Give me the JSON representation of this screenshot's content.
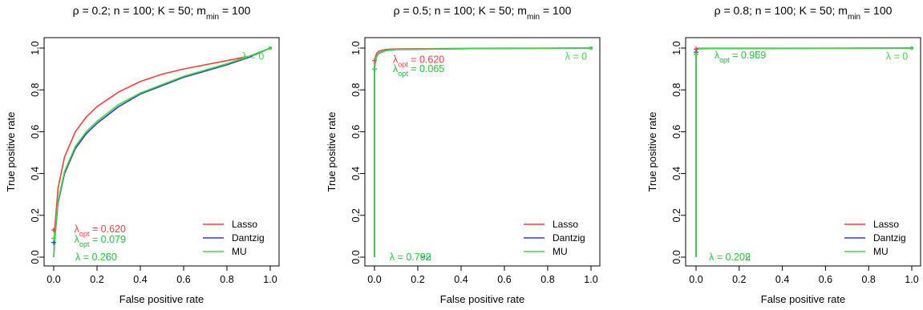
{
  "colors": {
    "lasso": "#ff3b3b",
    "dantzig": "#2b3fd6",
    "mu": "#3ddc3d",
    "axis": "#000000"
  },
  "chart_data": [
    {
      "type": "line",
      "title": {
        "pre": "ρ = 0.2; n = 100; K = 50; m",
        "sub": "min",
        "post": " = 100"
      },
      "xlabel": "False positive rate",
      "ylabel": "True positive rate",
      "xlim": [
        0,
        1
      ],
      "ylim": [
        0,
        1
      ],
      "xticks": [
        "0.0",
        "0.2",
        "0.4",
        "0.6",
        "0.8",
        "1.0"
      ],
      "yticks": [
        "0.0",
        "0.2",
        "0.4",
        "0.6",
        "0.8",
        "1.0"
      ],
      "legend_position": "bottom-right",
      "series": [
        {
          "name": "Lasso",
          "color": "#ff3b3b",
          "x": [
            0,
            0.005,
            0.02,
            0.05,
            0.1,
            0.15,
            0.2,
            0.3,
            0.4,
            0.5,
            0.6,
            0.7,
            0.8,
            0.9,
            1.0
          ],
          "y": [
            0,
            0.14,
            0.33,
            0.48,
            0.6,
            0.67,
            0.72,
            0.79,
            0.84,
            0.875,
            0.9,
            0.92,
            0.94,
            0.96,
            1.0
          ]
        },
        {
          "name": "Dantzig",
          "color": "#2b3fd6",
          "x": [
            0,
            0.005,
            0.02,
            0.05,
            0.1,
            0.15,
            0.2,
            0.3,
            0.4,
            0.5,
            0.6,
            0.7,
            0.8,
            0.9,
            1.0
          ],
          "y": [
            0,
            0.09,
            0.26,
            0.4,
            0.52,
            0.59,
            0.64,
            0.72,
            0.78,
            0.82,
            0.86,
            0.89,
            0.92,
            0.955,
            1.0
          ]
        },
        {
          "name": "MU",
          "color": "#3ddc3d",
          "x": [
            0,
            0.005,
            0.02,
            0.05,
            0.1,
            0.15,
            0.2,
            0.3,
            0.4,
            0.5,
            0.6,
            0.7,
            0.8,
            0.9,
            1.0
          ],
          "y": [
            0,
            0.1,
            0.27,
            0.41,
            0.53,
            0.6,
            0.65,
            0.73,
            0.785,
            0.825,
            0.865,
            0.895,
            0.925,
            0.96,
            1.0
          ]
        }
      ],
      "annotations": [
        {
          "text": "λ = 0.260",
          "x": 0.1,
          "y": 0.0,
          "color": "#2b3fd6"
        },
        {
          "text": "λ = 0.250",
          "x": 0.1,
          "y": 0.0,
          "color": "#3ddc3d"
        },
        {
          "text": "λ = 0",
          "x": 0.87,
          "y": 0.96,
          "color": "#3ddc3d"
        }
      ],
      "lambda_opt": [
        {
          "value": "0.620",
          "x": 0.095,
          "y": 0.135,
          "color": "#ff3b3b",
          "marker_x": 0.0,
          "marker_y": 0.13
        },
        {
          "value": "0.079",
          "x": 0.095,
          "y": 0.085,
          "color": "#2b3fd6",
          "marker_x": 0.0,
          "marker_y": 0.07
        },
        {
          "value": "0.079",
          "x": 0.095,
          "y": 0.085,
          "color": "#3ddc3d",
          "marker_x": 0.0,
          "marker_y": 0.09
        }
      ]
    },
    {
      "type": "line",
      "title": {
        "pre": "ρ = 0.5; n = 100; K = 50; m",
        "sub": "min",
        "post": " = 100"
      },
      "xlabel": "False positive rate",
      "ylabel": "True positive rate",
      "xlim": [
        0,
        1
      ],
      "ylim": [
        0,
        1
      ],
      "xticks": [
        "0.0",
        "0.2",
        "0.4",
        "0.6",
        "0.8",
        "1.0"
      ],
      "yticks": [
        "0.0",
        "0.2",
        "0.4",
        "0.6",
        "0.8",
        "1.0"
      ],
      "legend_position": "bottom-right",
      "series": [
        {
          "name": "Lasso",
          "color": "#ff3b3b",
          "x": [
            0,
            0.0,
            0.005,
            0.01,
            0.02,
            0.05,
            0.1,
            0.5,
            1.0
          ],
          "y": [
            0,
            0.93,
            0.96,
            0.975,
            0.985,
            0.993,
            0.996,
            0.999,
            1.0
          ]
        },
        {
          "name": "Dantzig",
          "color": "#2b3fd6",
          "x": [
            0,
            0.0,
            0.005,
            0.01,
            0.02,
            0.05,
            0.1,
            0.5,
            1.0
          ],
          "y": [
            0,
            0.9,
            0.94,
            0.96,
            0.975,
            0.987,
            0.993,
            0.998,
            1.0
          ]
        },
        {
          "name": "MU",
          "color": "#3ddc3d",
          "x": [
            0,
            0.0,
            0.005,
            0.01,
            0.02,
            0.05,
            0.1,
            0.5,
            1.0
          ],
          "y": [
            0,
            0.9,
            0.945,
            0.962,
            0.977,
            0.988,
            0.994,
            0.998,
            1.0
          ]
        }
      ],
      "annotations": [
        {
          "text": "λ = 0.792",
          "x": 0.07,
          "y": 0.0,
          "color": "#2b3fd6"
        },
        {
          "text": "λ = 0.780",
          "x": 0.07,
          "y": 0.0,
          "color": "#3ddc3d"
        },
        {
          "text": "λ = 0",
          "x": 0.88,
          "y": 0.96,
          "color": "#3ddc3d"
        }
      ],
      "lambda_opt": [
        {
          "value": "0.620",
          "x": 0.085,
          "y": 0.945,
          "color": "#ff3b3b",
          "marker_x": 0.0,
          "marker_y": 0.94
        },
        {
          "value": "0.065",
          "x": 0.085,
          "y": 0.9,
          "color": "#2b3fd6",
          "marker_x": 0.0,
          "marker_y": 0.9
        },
        {
          "value": "0.065",
          "x": 0.085,
          "y": 0.9,
          "color": "#3ddc3d",
          "marker_x": 0.0,
          "marker_y": 0.9
        }
      ]
    },
    {
      "type": "line",
      "title": {
        "pre": "ρ = 0.8; n = 100; K = 50; m",
        "sub": "min",
        "post": " = 100"
      },
      "xlabel": "False positive rate",
      "ylabel": "True positive rate",
      "xlim": [
        0,
        1
      ],
      "ylim": [
        0,
        1
      ],
      "xticks": [
        "0.0",
        "0.2",
        "0.4",
        "0.6",
        "0.8",
        "1.0"
      ],
      "yticks": [
        "0.0",
        "0.2",
        "0.4",
        "0.6",
        "0.8",
        "1.0"
      ],
      "legend_position": "bottom-right",
      "series": [
        {
          "name": "Lasso",
          "color": "#ff3b3b",
          "x": [
            0,
            0.0,
            0.003,
            0.01,
            1.0
          ],
          "y": [
            0,
            0.99,
            0.997,
            0.999,
            1.0
          ]
        },
        {
          "name": "Dantzig",
          "color": "#2b3fd6",
          "x": [
            0,
            0.0,
            0.003,
            0.01,
            1.0
          ],
          "y": [
            0,
            0.97,
            0.99,
            0.997,
            1.0
          ]
        },
        {
          "name": "MU",
          "color": "#3ddc3d",
          "x": [
            0,
            0.0,
            0.003,
            0.01,
            1.0
          ],
          "y": [
            0,
            0.97,
            0.99,
            0.997,
            1.0
          ]
        }
      ],
      "annotations": [
        {
          "text": "λ = 0.202",
          "x": 0.06,
          "y": 0.0,
          "color": "#2b3fd6"
        },
        {
          "text": "λ = 0.209",
          "x": 0.06,
          "y": 0.0,
          "color": "#3ddc3d"
        },
        {
          "text": "λ = 0",
          "x": 0.88,
          "y": 0.96,
          "color": "#3ddc3d"
        }
      ],
      "lambda_opt": [
        {
          "value": "0.959",
          "x": 0.085,
          "y": 0.965,
          "color": "#2b3fd6",
          "marker_x": 0.0,
          "marker_y": 0.98
        },
        {
          "value": "0.969",
          "x": 0.085,
          "y": 0.965,
          "color": "#3ddc3d",
          "marker_x": 0.0,
          "marker_y": 0.97
        },
        {
          "value": "0.969",
          "x": 0.085,
          "y": 0.965,
          "color": "#ff3b3b",
          "marker_x": 0.0,
          "marker_y": 0.995,
          "hidden": true
        }
      ]
    }
  ]
}
